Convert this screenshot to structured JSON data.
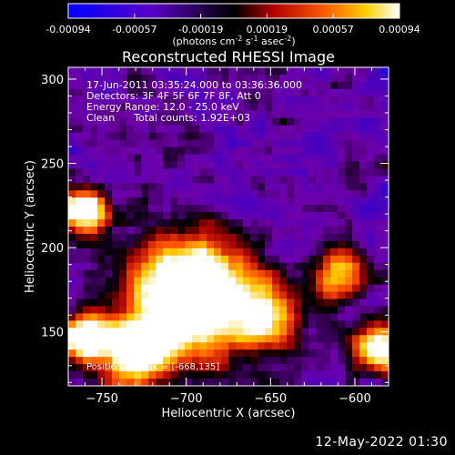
{
  "colorbar": {
    "ticks": [
      "-0.00094",
      "-0.00057",
      "-0.00019",
      "0.00019",
      "0.00057",
      "0.00094"
    ],
    "units_main": "(photons cm",
    "units_sup1": "-2",
    "units_mid": " s",
    "units_sup2": "-1",
    "units_end": " asec",
    "units_sup3": "-2",
    "units_close": ")",
    "colors": [
      "#0000ff",
      "#6a00b4",
      "#000000",
      "#a00000",
      "#ff5a00",
      "#ffd000",
      "#ffffff"
    ]
  },
  "footer": {
    "timestamp": "12-May-2022 01:30"
  },
  "chart_data": {
    "type": "heatmap",
    "title": "Reconstructed RHESSI Image",
    "xlabel": "Heliocentric X (arcsec)",
    "ylabel": "Heliocentric Y (arcsec)",
    "xlim": [
      -770,
      -580
    ],
    "ylim": [
      118,
      307
    ],
    "xticks": [
      -750,
      -700,
      -650,
      -600
    ],
    "yticks": [
      150,
      200,
      250,
      300
    ],
    "colorbar_range": [
      -0.00094,
      0.00094
    ],
    "annotations": [
      "17-Jun-2011 03:35:24.000 to 03:36:36.000",
      "Detectors: 3F 4F 5F 6F 7F 8F, Att 0",
      "Energy Range: 12.0 - 25.0 keV",
      "Clean      Total counts: 1.92E+03"
    ],
    "peak_label": "Position of Peak = [-668,135]",
    "peak_position": [
      -668,
      135
    ],
    "grid": false
  }
}
